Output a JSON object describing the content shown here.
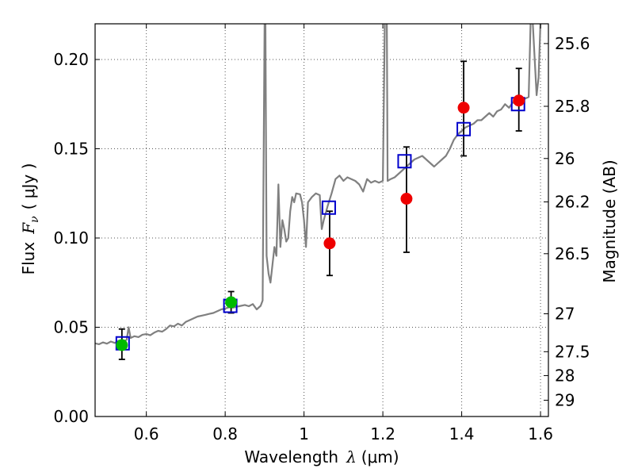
{
  "chart_data": {
    "type": "scatter",
    "xlabel_prefix": "Wavelength",
    "xlabel_symbol": "λ",
    "xlabel_units": "(μm)",
    "ylabel_prefix": "Flux",
    "ylabel_symbol": "F",
    "ylabel_subscript": "ν",
    "ylabel_units": "( μJy )",
    "y2label": "Magnitude (AB)",
    "xlim": [
      0.47,
      1.62
    ],
    "ylim": [
      0.0,
      0.22
    ],
    "grid": true,
    "x_ticks": [
      0.6,
      0.8,
      1.0,
      1.2,
      1.4,
      1.6
    ],
    "x_tick_labels": [
      "0.6",
      "0.8",
      "1",
      "1.2",
      "1.4",
      "1.6"
    ],
    "y_ticks": [
      0.0,
      0.05,
      0.1,
      0.15,
      0.2
    ],
    "y_tick_labels": [
      "0.00",
      "0.05",
      "0.10",
      "0.15",
      "0.20"
    ],
    "y2_ticks": [
      25.6,
      25.8,
      26,
      26.2,
      26.5,
      27,
      27.5,
      28,
      29
    ],
    "y2_tick_labels": [
      "25.6",
      "25.8",
      "26",
      "26.2",
      "26.5",
      "27",
      "27.5",
      "28",
      "29"
    ],
    "colors": {
      "model": "#808080",
      "model_points": "#0000cc",
      "ground_obs": "#00bb00",
      "space_obs": "#ee0000",
      "errorbar": "#000000",
      "grid": "#555555"
    },
    "series": [
      {
        "name": "model_spectrum",
        "style": "line",
        "points": [
          [
            0.47,
            0.041
          ],
          [
            0.48,
            0.0405
          ],
          [
            0.49,
            0.0415
          ],
          [
            0.5,
            0.0408
          ],
          [
            0.51,
            0.042
          ],
          [
            0.52,
            0.0412
          ],
          [
            0.53,
            0.0425
          ],
          [
            0.54,
            0.0418
          ],
          [
            0.55,
            0.043
          ],
          [
            0.555,
            0.05
          ],
          [
            0.56,
            0.044
          ],
          [
            0.57,
            0.045
          ],
          [
            0.58,
            0.0445
          ],
          [
            0.59,
            0.0458
          ],
          [
            0.6,
            0.0462
          ],
          [
            0.61,
            0.0455
          ],
          [
            0.62,
            0.047
          ],
          [
            0.63,
            0.048
          ],
          [
            0.64,
            0.0475
          ],
          [
            0.65,
            0.049
          ],
          [
            0.66,
            0.051
          ],
          [
            0.67,
            0.0505
          ],
          [
            0.68,
            0.052
          ],
          [
            0.69,
            0.051
          ],
          [
            0.7,
            0.053
          ],
          [
            0.71,
            0.054
          ],
          [
            0.72,
            0.055
          ],
          [
            0.73,
            0.056
          ],
          [
            0.74,
            0.0565
          ],
          [
            0.75,
            0.057
          ],
          [
            0.76,
            0.0575
          ],
          [
            0.77,
            0.058
          ],
          [
            0.78,
            0.059
          ],
          [
            0.79,
            0.06
          ],
          [
            0.8,
            0.0605
          ],
          [
            0.81,
            0.0612
          ],
          [
            0.82,
            0.061
          ],
          [
            0.83,
            0.0615
          ],
          [
            0.84,
            0.062
          ],
          [
            0.85,
            0.0625
          ],
          [
            0.86,
            0.0618
          ],
          [
            0.87,
            0.063
          ],
          [
            0.88,
            0.06
          ],
          [
            0.89,
            0.062
          ],
          [
            0.895,
            0.065
          ],
          [
            0.9,
            0.222
          ],
          [
            0.902,
            0.222
          ],
          [
            0.905,
            0.09
          ],
          [
            0.91,
            0.08
          ],
          [
            0.915,
            0.075
          ],
          [
            0.92,
            0.085
          ],
          [
            0.925,
            0.095
          ],
          [
            0.93,
            0.09
          ],
          [
            0.935,
            0.13
          ],
          [
            0.94,
            0.095
          ],
          [
            0.945,
            0.11
          ],
          [
            0.95,
            0.105
          ],
          [
            0.955,
            0.098
          ],
          [
            0.96,
            0.1
          ],
          [
            0.965,
            0.115
          ],
          [
            0.97,
            0.123
          ],
          [
            0.975,
            0.12
          ],
          [
            0.98,
            0.125
          ],
          [
            0.99,
            0.1245
          ],
          [
            0.995,
            0.12
          ],
          [
            1.0,
            0.11
          ],
          [
            1.005,
            0.095
          ],
          [
            1.01,
            0.12
          ],
          [
            1.02,
            0.123
          ],
          [
            1.03,
            0.125
          ],
          [
            1.04,
            0.124
          ],
          [
            1.045,
            0.105
          ],
          [
            1.05,
            0.11
          ],
          [
            1.06,
            0.118
          ],
          [
            1.07,
            0.125
          ],
          [
            1.08,
            0.133
          ],
          [
            1.09,
            0.135
          ],
          [
            1.1,
            0.132
          ],
          [
            1.11,
            0.134
          ],
          [
            1.12,
            0.133
          ],
          [
            1.13,
            0.132
          ],
          [
            1.14,
            0.13
          ],
          [
            1.15,
            0.126
          ],
          [
            1.16,
            0.133
          ],
          [
            1.17,
            0.131
          ],
          [
            1.18,
            0.132
          ],
          [
            1.19,
            0.131
          ],
          [
            1.2,
            0.132
          ],
          [
            1.205,
            0.222
          ],
          [
            1.21,
            0.222
          ],
          [
            1.212,
            0.132
          ],
          [
            1.22,
            0.133
          ],
          [
            1.23,
            0.134
          ],
          [
            1.24,
            0.136
          ],
          [
            1.25,
            0.138
          ],
          [
            1.26,
            0.14
          ],
          [
            1.27,
            0.142
          ],
          [
            1.28,
            0.144
          ],
          [
            1.29,
            0.145
          ],
          [
            1.3,
            0.146
          ],
          [
            1.31,
            0.144
          ],
          [
            1.32,
            0.142
          ],
          [
            1.33,
            0.14
          ],
          [
            1.34,
            0.142
          ],
          [
            1.35,
            0.144
          ],
          [
            1.36,
            0.146
          ],
          [
            1.37,
            0.15
          ],
          [
            1.38,
            0.155
          ],
          [
            1.39,
            0.158
          ],
          [
            1.4,
            0.16
          ],
          [
            1.41,
            0.162
          ],
          [
            1.42,
            0.163
          ],
          [
            1.43,
            0.164
          ],
          [
            1.44,
            0.166
          ],
          [
            1.45,
            0.166
          ],
          [
            1.46,
            0.168
          ],
          [
            1.47,
            0.17
          ],
          [
            1.48,
            0.168
          ],
          [
            1.49,
            0.171
          ],
          [
            1.5,
            0.172
          ],
          [
            1.51,
            0.175
          ],
          [
            1.52,
            0.173
          ],
          [
            1.53,
            0.176
          ],
          [
            1.54,
            0.175
          ],
          [
            1.55,
            0.176
          ],
          [
            1.56,
            0.178
          ],
          [
            1.57,
            0.179
          ],
          [
            1.575,
            0.222
          ],
          [
            1.58,
            0.222
          ],
          [
            1.59,
            0.18
          ],
          [
            1.595,
            0.19
          ],
          [
            1.6,
            0.222
          ],
          [
            1.61,
            0.222
          ],
          [
            1.62,
            0.222
          ]
        ]
      },
      {
        "name": "model_band_flux",
        "style": "open_square",
        "points": [
          [
            0.54,
            0.041
          ],
          [
            0.813,
            0.062
          ],
          [
            1.063,
            0.117
          ],
          [
            1.255,
            0.143
          ],
          [
            1.405,
            0.161
          ],
          [
            1.543,
            0.175
          ]
        ]
      },
      {
        "name": "ground_observed",
        "style": "filled_circle",
        "points": [
          [
            0.538,
            0.04,
            0.049,
            0.032
          ],
          [
            0.815,
            0.064,
            0.07,
            0.058
          ]
        ]
      },
      {
        "name": "space_observed",
        "style": "filled_circle",
        "points": [
          [
            1.065,
            0.097,
            0.115,
            0.079
          ],
          [
            1.26,
            0.122,
            0.151,
            0.092
          ],
          [
            1.405,
            0.173,
            0.199,
            0.146
          ],
          [
            1.545,
            0.177,
            0.195,
            0.16
          ]
        ]
      }
    ]
  }
}
